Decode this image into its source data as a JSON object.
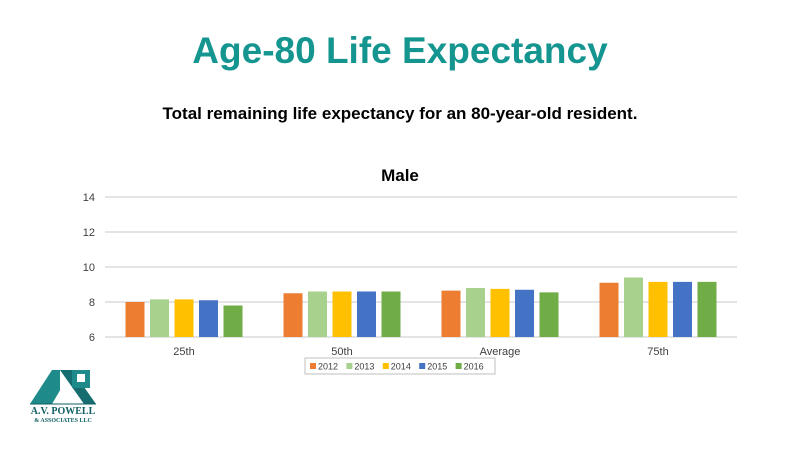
{
  "slide": {
    "title": "Age-80 Life Expectancy",
    "subtitle": "Total remaining life expectancy for an 80-year-old resident."
  },
  "logo": {
    "line1": "A.V. POWELL",
    "line2": "& ASSOCIATES LLC",
    "color": "#0f5f62"
  },
  "chart_data": {
    "type": "bar",
    "title": "Male",
    "xlabel": "",
    "ylabel": "",
    "categories": [
      "25th",
      "50th",
      "Average",
      "75th"
    ],
    "ylim": [
      6,
      14
    ],
    "yticks": [
      6,
      8,
      10,
      12,
      14
    ],
    "grid": true,
    "legend_position": "bottom",
    "series": [
      {
        "name": "2012",
        "color": "#ed7d31",
        "values": [
          8.0,
          8.5,
          8.65,
          9.1
        ]
      },
      {
        "name": "2013",
        "color": "#a9d18e",
        "values": [
          8.15,
          8.6,
          8.8,
          9.4
        ]
      },
      {
        "name": "2014",
        "color": "#ffc000",
        "values": [
          8.15,
          8.6,
          8.75,
          9.15
        ]
      },
      {
        "name": "2015",
        "color": "#4472c4",
        "values": [
          8.1,
          8.6,
          8.7,
          9.15
        ]
      },
      {
        "name": "2016",
        "color": "#70ad47",
        "values": [
          7.8,
          8.6,
          8.55,
          9.15
        ]
      }
    ]
  }
}
